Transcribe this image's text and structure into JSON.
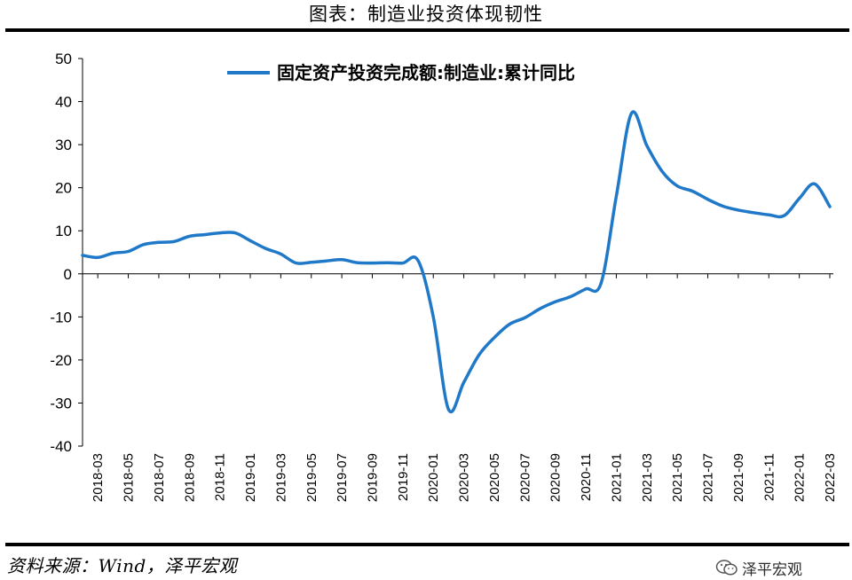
{
  "figure": {
    "title": "图表：制造业投资体现韧性",
    "source": "资料来源：Wind，泽平宏观",
    "watermark": "泽平宏观",
    "watermark_icon": "wechat-icon"
  },
  "colors": {
    "series": "#1f78c8",
    "axis": "#000000",
    "rule": "#000000"
  },
  "chart_data": {
    "type": "line",
    "title": "",
    "xlabel": "",
    "ylabel": "",
    "ylim": [
      -40,
      50
    ],
    "yticks": [
      50,
      40,
      30,
      20,
      10,
      0,
      -10,
      -20,
      -30,
      -40
    ],
    "grid": false,
    "legend_position": "top-center",
    "x_tick_labels": [
      "2018-03",
      "2018-05",
      "2018-07",
      "2018-09",
      "2018-11",
      "2019-01",
      "2019-03",
      "2019-05",
      "2019-07",
      "2019-09",
      "2019-11",
      "2020-01",
      "2020-03",
      "2020-05",
      "2020-07",
      "2020-09",
      "2020-11",
      "2021-01",
      "2021-03",
      "2021-05",
      "2021-07",
      "2021-09",
      "2021-11",
      "2022-01",
      "2022-03"
    ],
    "series": [
      {
        "name": "固定资产投资完成额:制造业:累计同比",
        "x": [
          "2018-02",
          "2018-03",
          "2018-04",
          "2018-05",
          "2018-06",
          "2018-07",
          "2018-08",
          "2018-09",
          "2018-10",
          "2018-11",
          "2018-12",
          "2019-01",
          "2019-02",
          "2019-03",
          "2019-04",
          "2019-05",
          "2019-06",
          "2019-07",
          "2019-08",
          "2019-09",
          "2019-10",
          "2019-11",
          "2019-12",
          "2020-01",
          "2020-02",
          "2020-03",
          "2020-04",
          "2020-05",
          "2020-06",
          "2020-07",
          "2020-08",
          "2020-09",
          "2020-10",
          "2020-11",
          "2020-12",
          "2021-01",
          "2021-02",
          "2021-03",
          "2021-04",
          "2021-05",
          "2021-06",
          "2021-07",
          "2021-08",
          "2021-09",
          "2021-10",
          "2021-11",
          "2021-12",
          "2022-01",
          "2022-02",
          "2022-03"
        ],
        "values": [
          4.3,
          3.8,
          4.8,
          5.2,
          6.8,
          7.3,
          7.5,
          8.7,
          9.1,
          9.5,
          9.5,
          7.7,
          5.9,
          4.6,
          2.5,
          2.7,
          3.0,
          3.3,
          2.6,
          2.5,
          2.6,
          2.5,
          3.1,
          -10.0,
          -31.5,
          -25.2,
          -18.8,
          -14.8,
          -11.7,
          -10.2,
          -8.1,
          -6.5,
          -5.3,
          -3.5,
          -2.2,
          18.0,
          37.3,
          29.8,
          23.8,
          20.4,
          19.2,
          17.3,
          15.7,
          14.8,
          14.2,
          13.7,
          13.5,
          17.5,
          20.9,
          15.6
        ]
      }
    ]
  }
}
